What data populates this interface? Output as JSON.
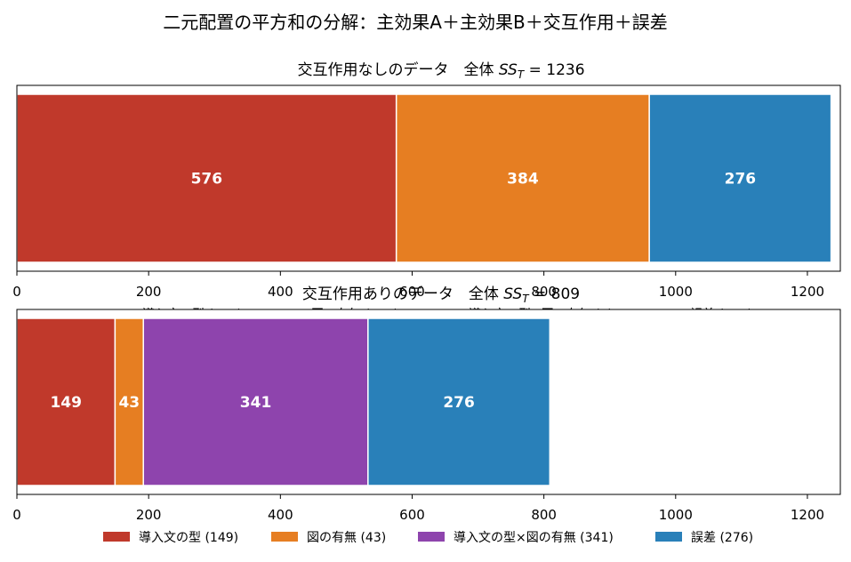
{
  "figure_title": "二元配置の平方和の分解：主効果A＋主効果B＋交互作用＋誤差",
  "colors": {
    "factor_a": "#c0392b",
    "factor_b": "#e67e22",
    "interaction": "#8e44ad",
    "error": "#2980b9"
  },
  "chart_data": [
    {
      "type": "bar",
      "orientation": "horizontal-stacked",
      "title_prefix": "交互作用なしのデータ　全体 ",
      "title_symbol": "SS",
      "title_subscript": "T",
      "title_suffix": " = 1236",
      "xlim": [
        0,
        1250
      ],
      "xticks": [
        0,
        200,
        400,
        600,
        800,
        1000,
        1200
      ],
      "segments": [
        {
          "name": "導入文の型",
          "value": 576,
          "color_key": "factor_a"
        },
        {
          "name": "図の有無",
          "value": 384,
          "color_key": "factor_b"
        },
        {
          "name": "導入文の型×図の有無",
          "value": 0,
          "color_key": "interaction"
        },
        {
          "name": "誤差",
          "value": 276,
          "color_key": "error"
        }
      ],
      "legend_partial_visible": [
        "導入文の型 (576)",
        "図の有無 (384)",
        "導入文の型×図の有無 (0)",
        "誤差 (276)"
      ]
    },
    {
      "type": "bar",
      "orientation": "horizontal-stacked",
      "title_prefix": "交互作用ありのデータ　全体 ",
      "title_symbol": "SS",
      "title_subscript": "T",
      "title_suffix": " = 809",
      "xlim": [
        0,
        1250
      ],
      "xticks": [
        0,
        200,
        400,
        600,
        800,
        1000,
        1200
      ],
      "segments": [
        {
          "name": "導入文の型",
          "value": 149,
          "color_key": "factor_a"
        },
        {
          "name": "図の有無",
          "value": 43,
          "color_key": "factor_b"
        },
        {
          "name": "導入文の型×図の有無",
          "value": 341,
          "color_key": "interaction"
        },
        {
          "name": "誤差",
          "value": 276,
          "color_key": "error"
        }
      ],
      "legend": [
        "導入文の型 (149)",
        "図の有無 (43)",
        "導入文の型×図の有無 (341)",
        "誤差 (276)"
      ]
    }
  ]
}
